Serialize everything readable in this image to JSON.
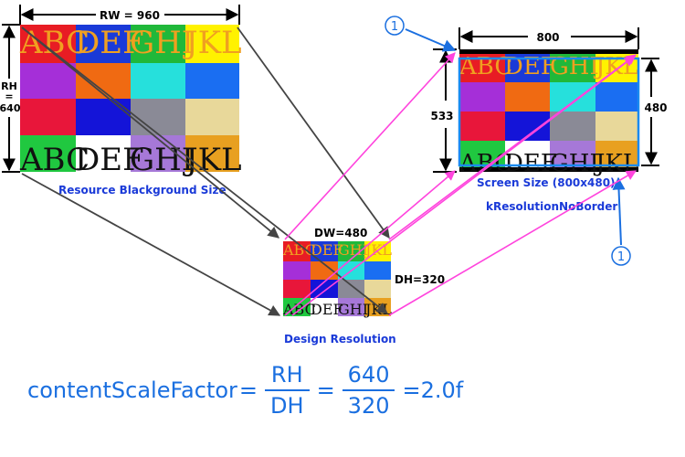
{
  "resource": {
    "width_label": "RW = 960",
    "height_label_top": "RH",
    "height_label_mid": "=",
    "height_label_bot": "640",
    "caption": "Resource Blackground Size",
    "row_top_letters": [
      "ABC",
      "DEF",
      "GHI",
      "JKL"
    ],
    "row_bottom_letters": [
      "ABC",
      "DEF",
      "GHI",
      "JKL"
    ]
  },
  "design": {
    "width_label": "DW=480",
    "height_label": "DH=320",
    "caption": "Design Resolution"
  },
  "screen": {
    "width_label": "800",
    "height_label_left": "533",
    "height_label_right": "480",
    "caption_line1": "Screen Size (800x480)",
    "caption_line2": "kResolutionNoBorder",
    "marker": "①"
  },
  "formula": {
    "lhs": "contentScaleFactor",
    "eq": "=",
    "num1": "RH",
    "den1": "DH",
    "num2": "640",
    "den2": "320",
    "result": "=2.0f"
  },
  "colors": {
    "red": "#e81c24",
    "blue": "#1a3ad8",
    "green": "#20b83a",
    "yellow": "#fff200",
    "purple": "#a52fd8",
    "orange": "#f06a12",
    "cyan": "#26e0dc",
    "azure": "#1a6ef2",
    "crimson": "#e8163a",
    "navy": "#1414d8",
    "gray": "#8a8a96",
    "beige": "#e8d89a",
    "white": "#ffffff",
    "lavender": "#a678d8",
    "amber": "#e8a020",
    "magenta_arrow": "#ff44dd",
    "formula_blue": "#1a6fe0"
  }
}
